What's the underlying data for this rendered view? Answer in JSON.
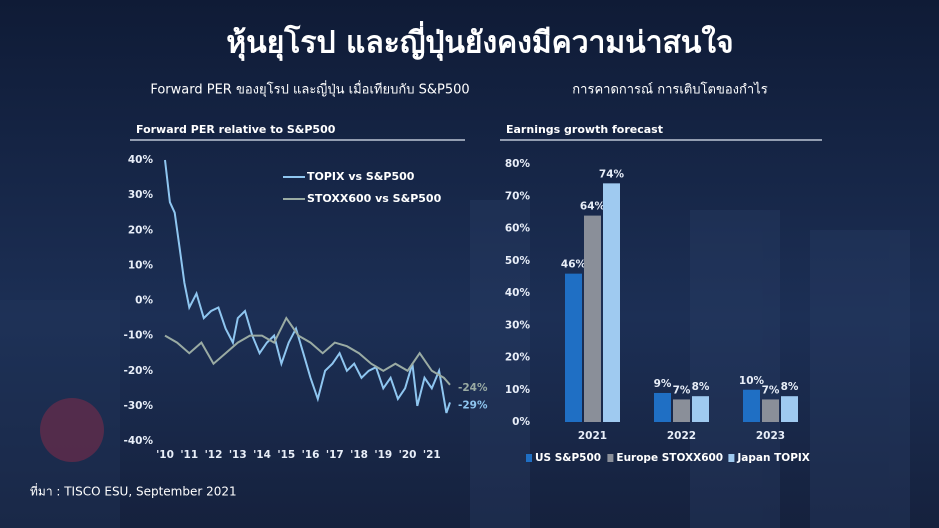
{
  "title": "หุ้นยุโรป และญี่ปุ่นยังคงมีความน่าสนใจ",
  "source": "ที่มา :  TISCO ESU, September 2021",
  "chart_data": [
    {
      "type": "line",
      "heading": "Forward PER ของยุโรป และญี่ปุ่น เมื่อเทียบกับ S&P500",
      "title": "Forward PER relative to S&P500",
      "xlim": [
        2010,
        2021.75
      ],
      "xticks": [
        {
          "value": 2010,
          "label": "'10"
        },
        {
          "value": 2011,
          "label": "'11"
        },
        {
          "value": 2012,
          "label": "'12"
        },
        {
          "value": 2013,
          "label": "'13"
        },
        {
          "value": 2014,
          "label": "'14"
        },
        {
          "value": 2015,
          "label": "'15"
        },
        {
          "value": 2016,
          "label": "'16"
        },
        {
          "value": 2017,
          "label": "'17"
        },
        {
          "value": 2018,
          "label": "'18"
        },
        {
          "value": 2019,
          "label": "'19"
        },
        {
          "value": 2020,
          "label": "'20"
        },
        {
          "value": 2021,
          "label": "'21"
        }
      ],
      "ylim": [
        -40,
        40
      ],
      "yticks": [
        {
          "value": 40,
          "label": "40%"
        },
        {
          "value": 30,
          "label": "30%"
        },
        {
          "value": 20,
          "label": "20%"
        },
        {
          "value": 10,
          "label": "10%"
        },
        {
          "value": 0,
          "label": "0%"
        },
        {
          "value": -10,
          "label": "-10%"
        },
        {
          "value": -20,
          "label": "-20%"
        },
        {
          "value": -30,
          "label": "-30%"
        },
        {
          "value": -40,
          "label": "-40%"
        }
      ],
      "grid": false,
      "legend": "top-right",
      "series": [
        {
          "name": "TOPIX vs S&P500",
          "color": "#8fc6f0",
          "end_label": "-29%",
          "x": [
            2010,
            2010.2,
            2010.4,
            2010.6,
            2010.8,
            2011,
            2011.3,
            2011.6,
            2011.9,
            2012.2,
            2012.5,
            2012.8,
            2013,
            2013.3,
            2013.6,
            2013.9,
            2014.2,
            2014.5,
            2014.8,
            2015.1,
            2015.4,
            2015.7,
            2016,
            2016.3,
            2016.6,
            2016.9,
            2017.2,
            2017.5,
            2017.8,
            2018.1,
            2018.4,
            2018.7,
            2019,
            2019.3,
            2019.6,
            2019.9,
            2020.2,
            2020.4,
            2020.7,
            2021,
            2021.3,
            2021.6,
            2021.75
          ],
          "y": [
            40,
            28,
            25,
            15,
            5,
            -2,
            2,
            -5,
            -3,
            -2,
            -8,
            -12,
            -5,
            -3,
            -10,
            -15,
            -12,
            -10,
            -18,
            -12,
            -8,
            -15,
            -22,
            -28,
            -20,
            -18,
            -15,
            -20,
            -18,
            -22,
            -20,
            -19,
            -25,
            -22,
            -28,
            -25,
            -18,
            -30,
            -22,
            -25,
            -20,
            -32,
            -29
          ]
        },
        {
          "name": "STOXX600 vs S&P500",
          "color": "#9aaba3",
          "end_label": "-24%",
          "x": [
            2010,
            2010.5,
            2011,
            2011.5,
            2012,
            2012.5,
            2013,
            2013.5,
            2014,
            2014.5,
            2015,
            2015.5,
            2016,
            2016.5,
            2017,
            2017.5,
            2018,
            2018.5,
            2019,
            2019.5,
            2020,
            2020.5,
            2021,
            2021.5,
            2021.75
          ],
          "y": [
            -10,
            -12,
            -15,
            -12,
            -18,
            -15,
            -12,
            -10,
            -10,
            -12,
            -5,
            -10,
            -12,
            -15,
            -12,
            -13,
            -15,
            -18,
            -20,
            -18,
            -20,
            -15,
            -20,
            -22,
            -24
          ]
        }
      ]
    },
    {
      "type": "bar",
      "heading": "การคาดการณ์ การเติบโตของกำไร",
      "title": "Earnings growth forecast",
      "categories": [
        "2021",
        "2022",
        "2023"
      ],
      "ylim": [
        0,
        80
      ],
      "yticks": [
        {
          "value": 0,
          "label": "0%"
        },
        {
          "value": 10,
          "label": "10%"
        },
        {
          "value": 20,
          "label": "20%"
        },
        {
          "value": 30,
          "label": "30%"
        },
        {
          "value": 40,
          "label": "40%"
        },
        {
          "value": 50,
          "label": "50%"
        },
        {
          "value": 60,
          "label": "60%"
        },
        {
          "value": 70,
          "label": "70%"
        },
        {
          "value": 80,
          "label": "80%"
        }
      ],
      "grid": false,
      "legend": "bottom",
      "series": [
        {
          "name": "US S&P500",
          "color": "#1f6fc4",
          "values": [
            46,
            9,
            10
          ],
          "value_labels": [
            "46%",
            "9%",
            "10%"
          ]
        },
        {
          "name": "Europe STOXX600",
          "color": "#8a8f99",
          "values": [
            64,
            7,
            7
          ],
          "value_labels": [
            "64%",
            "7%",
            "7%"
          ]
        },
        {
          "name": "Japan TOPIX",
          "color": "#9fcaf0",
          "values": [
            74,
            8,
            8
          ],
          "value_labels": [
            "74%",
            "8%",
            "8%"
          ]
        }
      ]
    }
  ]
}
